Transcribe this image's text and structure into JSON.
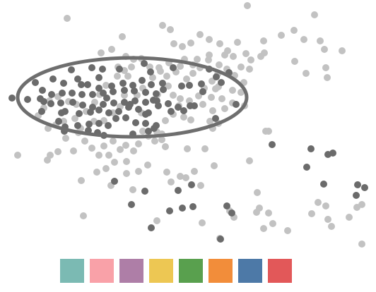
{
  "scatter": {
    "point_colors": {
      "light": "#c2c2c2",
      "dark": "#6b6b6b"
    },
    "selection_outline_color": "#6e6e6e",
    "selection_shape": "ellipse"
  },
  "palette": {
    "swatches": [
      {
        "name": "teal",
        "color": "#7bbab3"
      },
      {
        "name": "pink",
        "color": "#f9a1a8"
      },
      {
        "name": "purple",
        "color": "#ae7ea7"
      },
      {
        "name": "yellow",
        "color": "#edc753"
      },
      {
        "name": "green",
        "color": "#59a04e"
      },
      {
        "name": "orange",
        "color": "#f28d3a"
      },
      {
        "name": "blue",
        "color": "#4d79a7"
      },
      {
        "name": "red",
        "color": "#e25859"
      }
    ]
  }
}
